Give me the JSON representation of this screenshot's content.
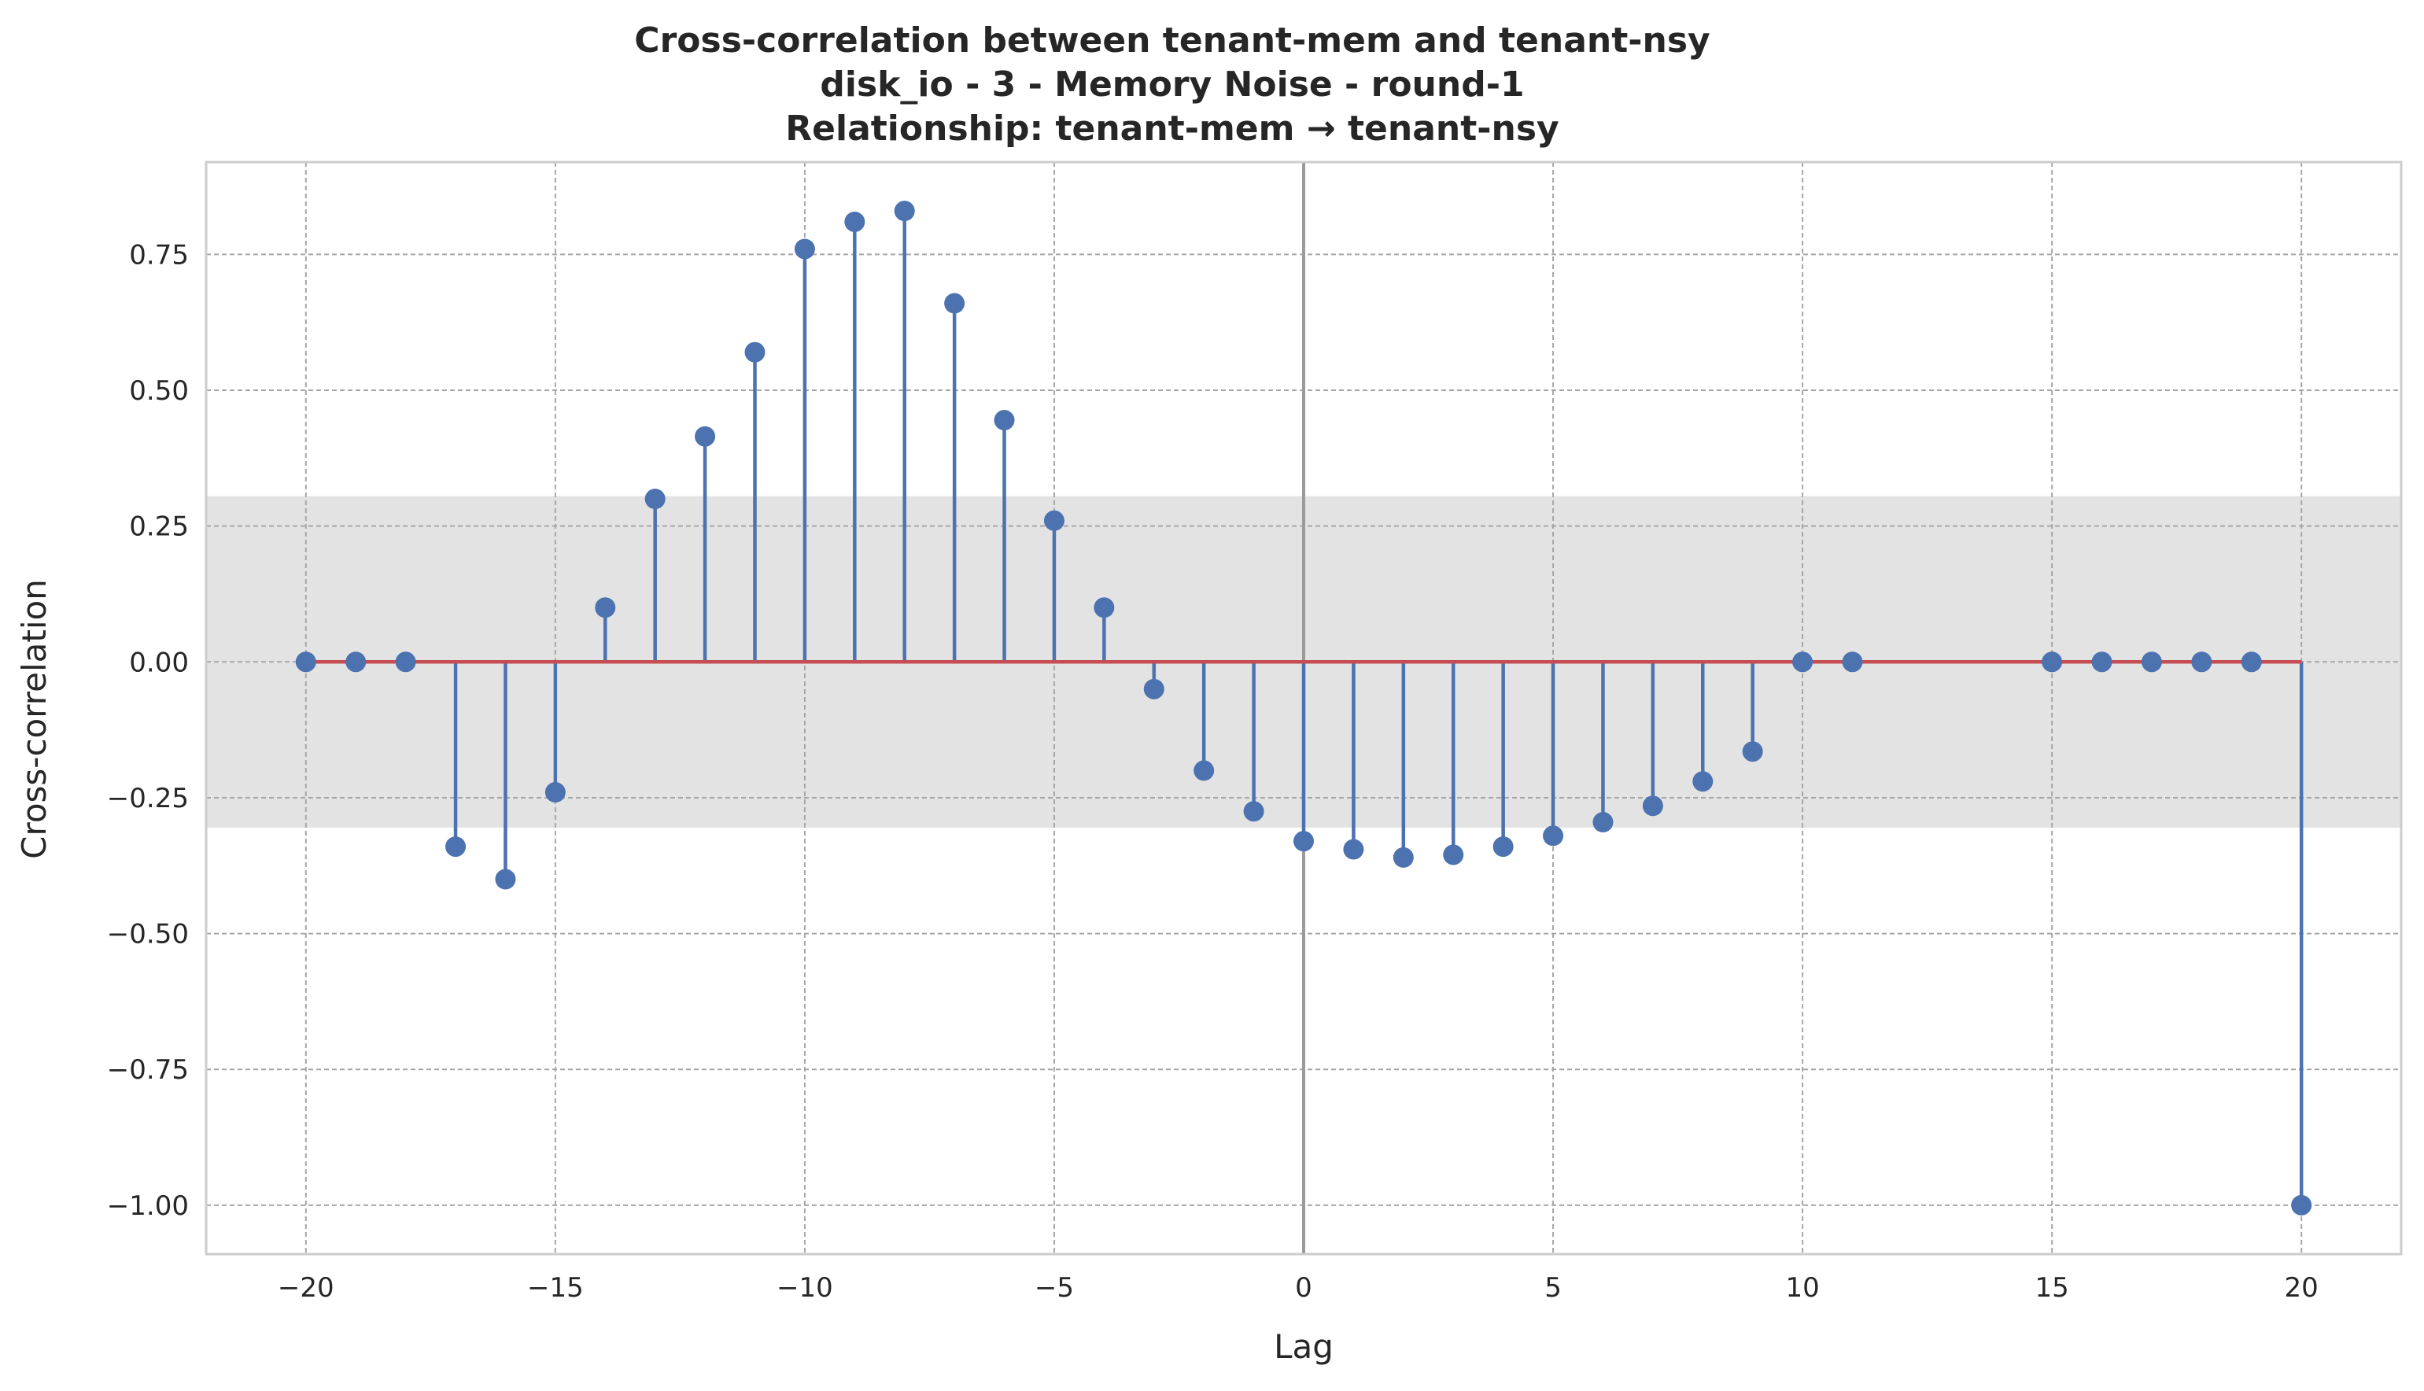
{
  "chart_data": {
    "type": "stem",
    "title_lines": [
      "Cross-correlation between tenant-mem and tenant-nsy",
      "disk_io - 3 - Memory Noise - round-1",
      "Relationship: tenant-mem → tenant-nsy"
    ],
    "xlabel": "Lag",
    "ylabel": "Cross-correlation",
    "xlim": [
      -22,
      22
    ],
    "ylim": [
      -1.09,
      0.92
    ],
    "x_ticks": [
      -20,
      -15,
      -10,
      -5,
      0,
      5,
      10,
      15,
      20
    ],
    "x_tick_labels": [
      "−20",
      "−15",
      "−10",
      "−5",
      "0",
      "5",
      "10",
      "15",
      "20"
    ],
    "y_ticks": [
      0.75,
      0.5,
      0.25,
      0.0,
      -0.25,
      -0.5,
      -0.75,
      -1.0
    ],
    "y_tick_labels": [
      "0.75",
      "0.50",
      "0.25",
      "0.00",
      "−0.25",
      "−0.50",
      "−0.75",
      "−1.00"
    ],
    "confidence_band": [
      -0.305,
      0.305
    ],
    "grid": true,
    "points": [
      {
        "lag": -20,
        "value": 0.0
      },
      {
        "lag": -19,
        "value": 0.0
      },
      {
        "lag": -18,
        "value": 0.0
      },
      {
        "lag": -17,
        "value": -0.34
      },
      {
        "lag": -16,
        "value": -0.4
      },
      {
        "lag": -15,
        "value": -0.24
      },
      {
        "lag": -14,
        "value": 0.1
      },
      {
        "lag": -13,
        "value": 0.3
      },
      {
        "lag": -12,
        "value": 0.415
      },
      {
        "lag": -11,
        "value": 0.57
      },
      {
        "lag": -10,
        "value": 0.76
      },
      {
        "lag": -9,
        "value": 0.81
      },
      {
        "lag": -8,
        "value": 0.83
      },
      {
        "lag": -7,
        "value": 0.66
      },
      {
        "lag": -6,
        "value": 0.445
      },
      {
        "lag": -5,
        "value": 0.26
      },
      {
        "lag": -4,
        "value": 0.1
      },
      {
        "lag": -3,
        "value": -0.05
      },
      {
        "lag": -2,
        "value": -0.2
      },
      {
        "lag": -1,
        "value": -0.275
      },
      {
        "lag": 0,
        "value": -0.33
      },
      {
        "lag": 1,
        "value": -0.345
      },
      {
        "lag": 2,
        "value": -0.36
      },
      {
        "lag": 3,
        "value": -0.355
      },
      {
        "lag": 4,
        "value": -0.34
      },
      {
        "lag": 5,
        "value": -0.32
      },
      {
        "lag": 6,
        "value": -0.295
      },
      {
        "lag": 7,
        "value": -0.265
      },
      {
        "lag": 8,
        "value": -0.22
      },
      {
        "lag": 9,
        "value": -0.165
      },
      {
        "lag": 10,
        "value": 0.0
      },
      {
        "lag": 11,
        "value": 0.0
      },
      {
        "lag": 15,
        "value": 0.0
      },
      {
        "lag": 16,
        "value": 0.0
      },
      {
        "lag": 17,
        "value": 0.0
      },
      {
        "lag": 18,
        "value": 0.0
      },
      {
        "lag": 19,
        "value": 0.0
      },
      {
        "lag": 20,
        "value": -1.0
      }
    ],
    "colors": {
      "stem": "#4c72b0",
      "baseline": "#c44e52",
      "band": "#e3e3e3",
      "zero_lag_line": "#9a9a9a",
      "grid": "#a6a6a6",
      "spine": "#cccccc"
    }
  }
}
